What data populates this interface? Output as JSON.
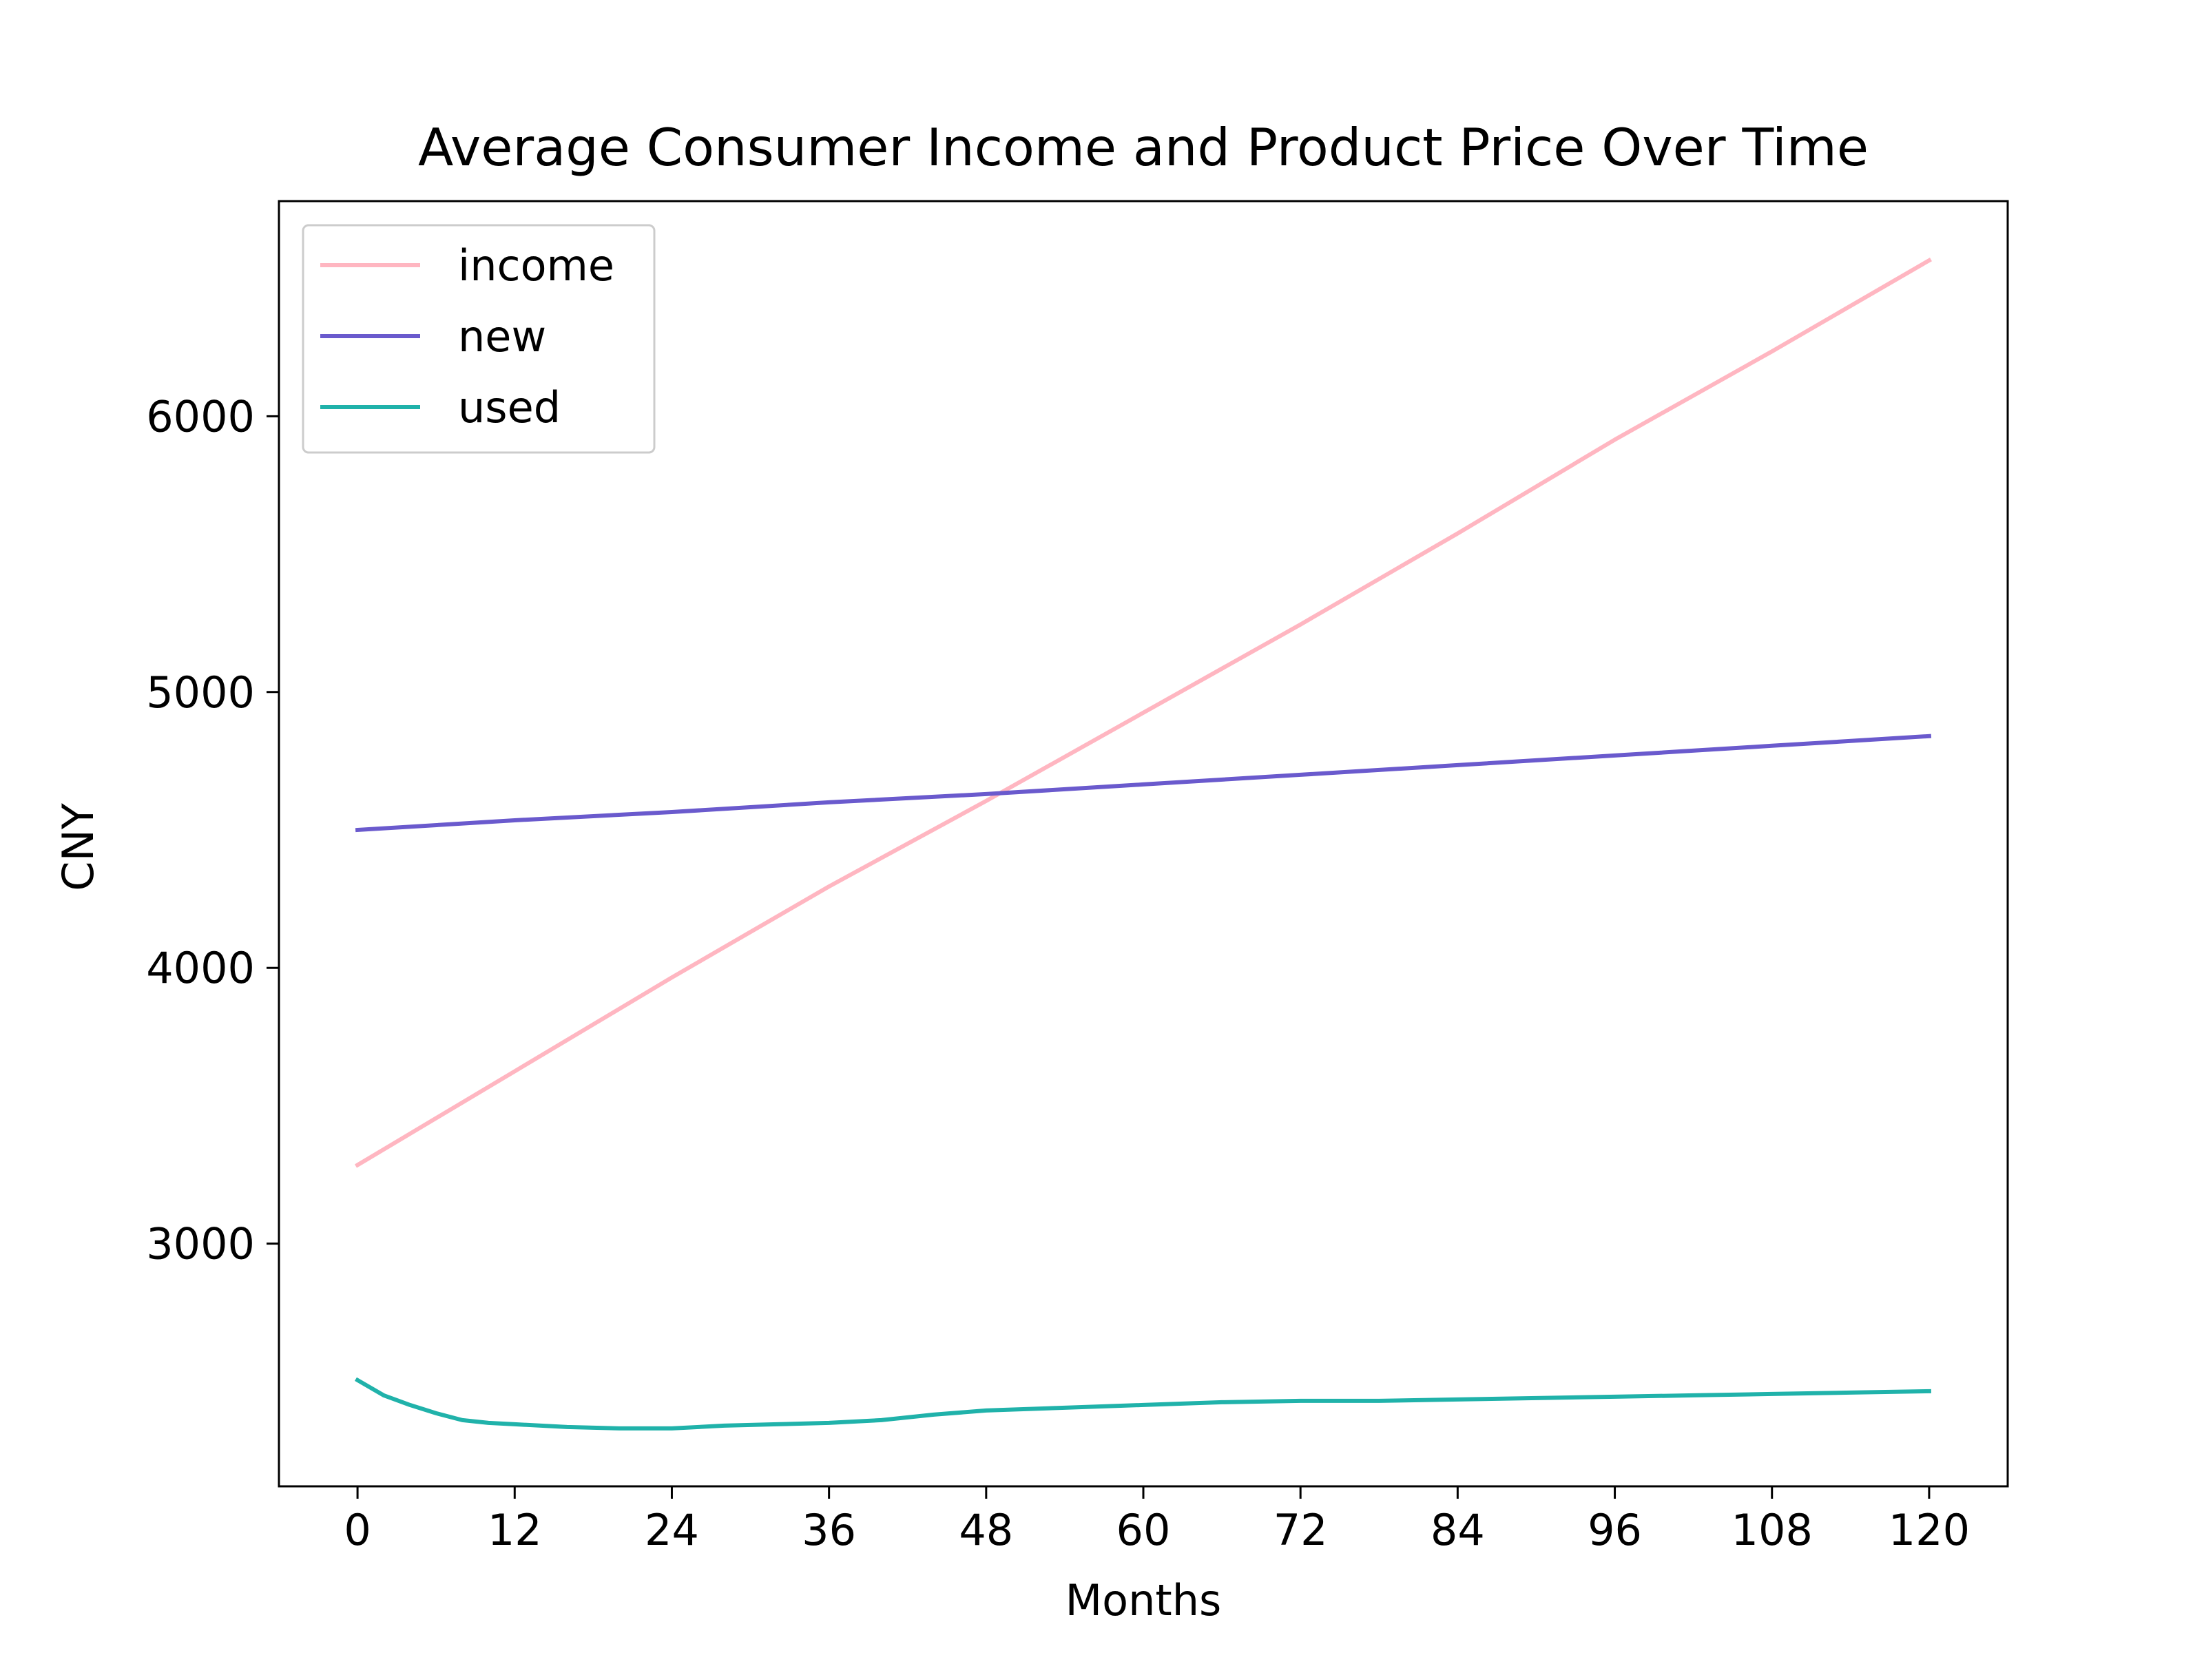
{
  "chart_data": {
    "type": "line",
    "title": "Average Consumer Income and Product Price Over Time",
    "xlabel": "Months",
    "ylabel": "CNY",
    "xlim": [
      -6,
      126
    ],
    "ylim": [
      2120,
      6780
    ],
    "xticks": [
      0,
      12,
      24,
      36,
      48,
      60,
      72,
      84,
      96,
      108,
      120
    ],
    "yticks": [
      3000,
      4000,
      5000,
      6000
    ],
    "grid": false,
    "legend_position": "top-left",
    "series": [
      {
        "name": "income",
        "color": "#ffb6c1",
        "x": [
          0,
          12,
          24,
          36,
          48,
          60,
          72,
          84,
          96,
          108,
          120
        ],
        "y": [
          3285,
          3625,
          3965,
          4295,
          4605,
          4925,
          5245,
          5575,
          5915,
          6235,
          6565
        ]
      },
      {
        "name": "new",
        "color": "#6a5acd",
        "x": [
          0,
          12,
          24,
          36,
          48,
          60,
          72,
          84,
          96,
          108,
          120
        ],
        "y": [
          4500,
          4535,
          4565,
          4600,
          4630,
          4665,
          4700,
          4735,
          4770,
          4805,
          4840
        ]
      },
      {
        "name": "used",
        "color": "#20b2aa",
        "x": [
          0,
          2,
          4,
          6,
          8,
          10,
          12,
          16,
          20,
          24,
          28,
          32,
          36,
          40,
          44,
          48,
          54,
          60,
          66,
          72,
          78,
          84,
          90,
          96,
          102,
          108,
          114,
          120
        ],
        "y": [
          2505,
          2450,
          2415,
          2385,
          2360,
          2350,
          2345,
          2335,
          2330,
          2330,
          2340,
          2345,
          2350,
          2360,
          2380,
          2395,
          2405,
          2415,
          2425,
          2430,
          2430,
          2435,
          2440,
          2445,
          2450,
          2455,
          2460,
          2465
        ]
      }
    ]
  }
}
